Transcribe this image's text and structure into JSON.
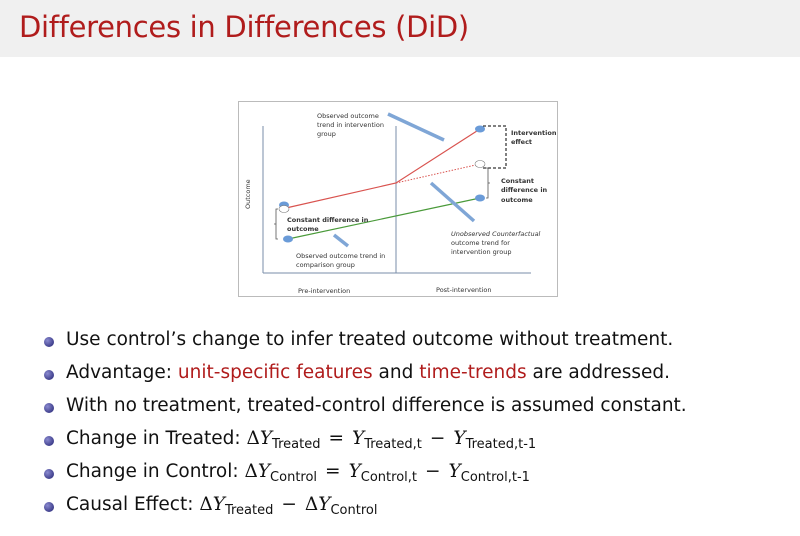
{
  "title": "Differences in Differences (DiD)",
  "figure": {
    "y_axis_label": "Outcome",
    "x_labels": [
      "Pre-intervention",
      "Post-intervention"
    ],
    "label_observed_intervention": [
      "Observed outcome",
      "trend in intervention",
      "group"
    ],
    "label_intervention_effect": [
      "Intervention",
      "effect"
    ],
    "label_constant_diff_right": [
      "Constant",
      "difference in",
      "outcome"
    ],
    "label_constant_diff_left": [
      "Constant difference in",
      "outcome"
    ],
    "label_observed_comparison": [
      "Observed outcome trend in",
      "comparison group"
    ],
    "label_counterfactual": [
      "Unobserved Counterfactual",
      "outcome trend for",
      "intervention group"
    ],
    "colors": {
      "treated": "#d9534f",
      "control": "#4a9a3a",
      "arrow": "#7fa6d6",
      "point": "#6a9bd8"
    }
  },
  "bullets": [
    {
      "text": "Use control’s change to infer treated outcome without treatment."
    },
    {
      "a": "Advantage: ",
      "b": "unit-specific features",
      "c": " and ",
      "d": "time-trends",
      "e": " are addressed."
    },
    {
      "text": "With no treatment, treated-control difference is assumed constant."
    },
    {
      "label": "Change in Treated: ",
      "delta": "Δ",
      "Y": "Y",
      "sub1": "Treated",
      "eq": "=",
      "sub2": "Treated,t",
      "minus": "−",
      "sub3": "Treated,t-1"
    },
    {
      "label": "Change in Control: ",
      "delta": "Δ",
      "Y": "Y",
      "sub1": "Control",
      "eq": "=",
      "sub2": "Control,t",
      "minus": "−",
      "sub3": "Control,t-1"
    },
    {
      "label": "Causal Effect: ",
      "delta": "Δ",
      "Y": "Y",
      "sub1": "Treated",
      "minus": "−",
      "sub2": "Control"
    }
  ]
}
